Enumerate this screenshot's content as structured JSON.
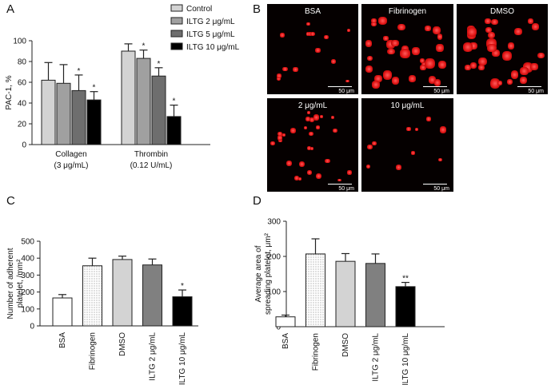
{
  "panels": {
    "a": "A",
    "b": "B",
    "c": "C",
    "d": "D"
  },
  "colors": {
    "control": "#d3d3d3",
    "iltg2": "#a0a0a0",
    "iltg5": "#6e6e6e",
    "iltg10": "#000000",
    "bsa": "#ffffff",
    "fibrinogen_pattern": "dotted",
    "dmso": "#d3d3d3",
    "c_iltg2": "#808080",
    "c_iltg10": "#000000",
    "cell_red": "#e01515",
    "micro_bg": "#050000"
  },
  "chart_data": [
    {
      "type": "bar",
      "id": "A",
      "ylabel": "PAC-1, %",
      "ylim": [
        0,
        100
      ],
      "yticks": [
        0,
        20,
        40,
        60,
        80,
        100
      ],
      "groups": [
        {
          "label1": "Collagen",
          "label2": "(3 μg/mL)"
        },
        {
          "label1": "Thrombin",
          "label2": "(0.12 U/mL)"
        }
      ],
      "series": [
        {
          "name": "Control",
          "values": [
            62,
            90
          ],
          "errors": [
            17,
            7
          ],
          "sig": [
            "",
            ""
          ]
        },
        {
          "name": "ILTG 2 μg/mL",
          "values": [
            59,
            83
          ],
          "errors": [
            18,
            8
          ],
          "sig": [
            "",
            "*"
          ]
        },
        {
          "name": "ILTG 5 μg/mL",
          "values": [
            52,
            66
          ],
          "errors": [
            15,
            8
          ],
          "sig": [
            "*",
            "*"
          ]
        },
        {
          "name": "ILTG 10 μg/mL",
          "values": [
            43,
            27
          ],
          "errors": [
            8,
            11
          ],
          "sig": [
            "*",
            "*"
          ]
        }
      ]
    },
    {
      "type": "bar",
      "id": "C",
      "ylabel": "Number of adherent platelet, /mm²",
      "ylim": [
        0,
        500
      ],
      "yticks": [
        0,
        100,
        200,
        300,
        400,
        500
      ],
      "categories": [
        "BSA",
        "Fibrinogen",
        "DMSO",
        "ILTG 2 μg/mL",
        "ILTG 10 μg/mL"
      ],
      "values": [
        165,
        355,
        392,
        360,
        172
      ],
      "errors": [
        20,
        45,
        20,
        35,
        40
      ],
      "sig": [
        "",
        "",
        "",
        "",
        "*"
      ]
    },
    {
      "type": "bar",
      "id": "D",
      "ylabel": "Average area of spreading platelet, μm²",
      "ylim": [
        0,
        300
      ],
      "yticks": [
        0,
        100,
        200,
        300
      ],
      "categories": [
        "BSA",
        "Fibrinogen",
        "DMSO",
        "ILTG 2 μg/mL",
        "ILTG 10 μg/mL"
      ],
      "values": [
        28,
        207,
        186,
        180,
        114
      ],
      "errors": [
        5,
        43,
        22,
        27,
        12
      ],
      "sig": [
        "",
        "",
        "",
        "",
        "**"
      ]
    }
  ],
  "micrographs": [
    {
      "label": "BSA",
      "scale": "50 μm"
    },
    {
      "label": "Fibrinogen",
      "scale": "50 μm"
    },
    {
      "label": "DMSO",
      "scale": "50 μm"
    },
    {
      "label": "2 μg/mL",
      "scale": "50 μm"
    },
    {
      "label": "10 μg/mL",
      "scale": "50 μm"
    }
  ]
}
